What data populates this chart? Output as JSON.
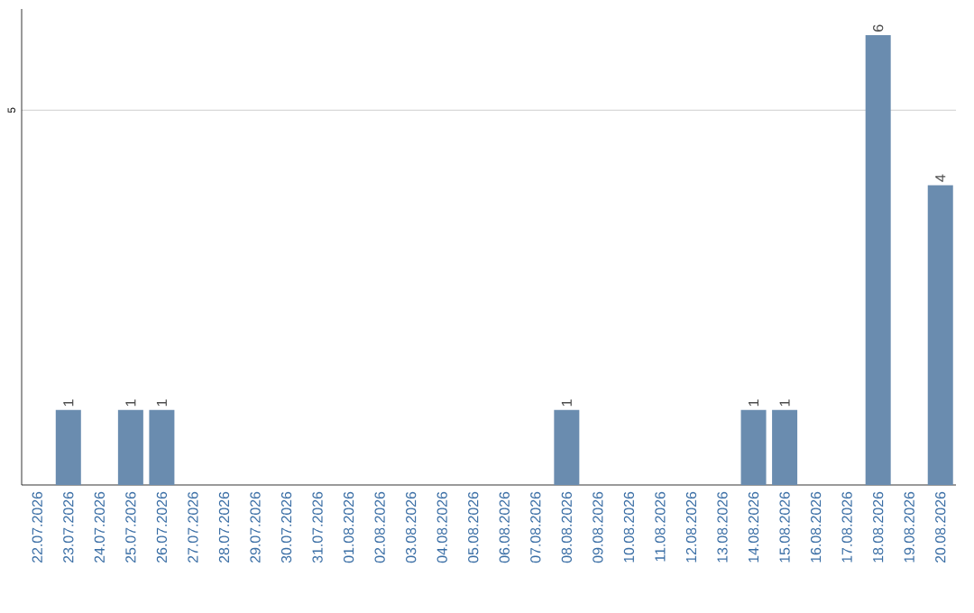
{
  "chart_data": {
    "type": "bar",
    "categories": [
      "22.07.2026",
      "23.07.2026",
      "24.07.2026",
      "25.07.2026",
      "26.07.2026",
      "27.07.2026",
      "28.07.2026",
      "29.07.2026",
      "30.07.2026",
      "31.07.2026",
      "01.08.2026",
      "02.08.2026",
      "03.08.2026",
      "04.08.2026",
      "05.08.2026",
      "06.08.2026",
      "07.08.2026",
      "08.08.2026",
      "09.08.2026",
      "10.08.2026",
      "11.08.2026",
      "12.08.2026",
      "13.08.2026",
      "14.08.2026",
      "15.08.2026",
      "16.08.2026",
      "17.08.2026",
      "18.08.2026",
      "19.08.2026",
      "20.08.2026"
    ],
    "values": [
      0,
      1,
      0,
      1,
      1,
      0,
      0,
      0,
      0,
      0,
      0,
      0,
      0,
      0,
      0,
      0,
      0,
      1,
      0,
      0,
      0,
      0,
      0,
      1,
      1,
      0,
      0,
      6,
      0,
      4
    ],
    "value_labels": [
      null,
      "1",
      null,
      "1",
      "1",
      null,
      null,
      null,
      null,
      null,
      null,
      null,
      null,
      null,
      null,
      null,
      null,
      "1",
      null,
      null,
      null,
      null,
      null,
      "1",
      "1",
      null,
      null,
      "6",
      null,
      "4"
    ],
    "color": "#6a8caf",
    "ylim": [
      0,
      6.35
    ],
    "yticks": [
      5
    ],
    "grid": "y"
  }
}
